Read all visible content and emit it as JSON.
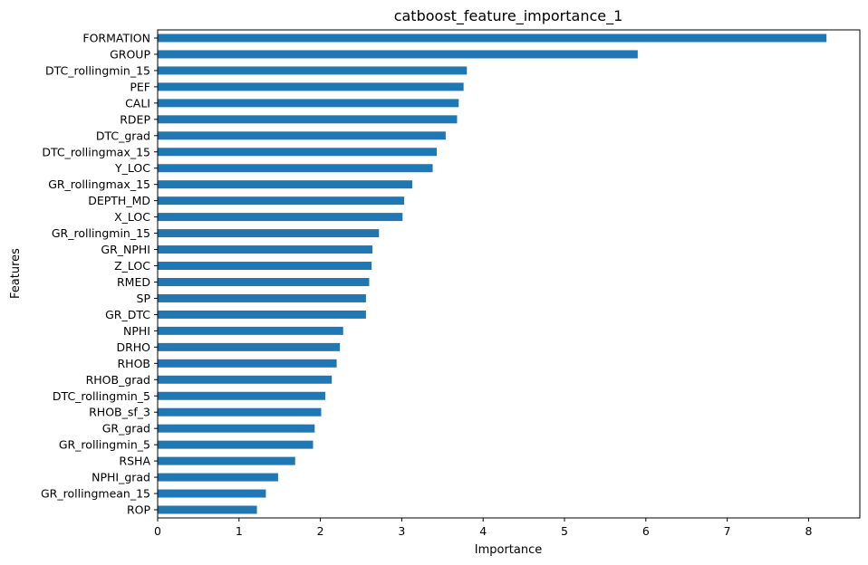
{
  "chart_data": {
    "type": "bar",
    "orientation": "horizontal",
    "title": "catboost_feature_importance_1",
    "xlabel": "Importance",
    "ylabel": "Features",
    "xlim": [
      0,
      8.63
    ],
    "xticks": [
      "0",
      "1",
      "2",
      "3",
      "4",
      "5",
      "6",
      "7",
      "8"
    ],
    "grid": false,
    "bar_color": "#1f77b4",
    "categories": [
      "FORMATION",
      "GROUP",
      "DTC_rollingmin_15",
      "PEF",
      "CALI",
      "RDEP",
      "DTC_grad",
      "DTC_rollingmax_15",
      "Y_LOC",
      "GR_rollingmax_15",
      "DEPTH_MD",
      "X_LOC",
      "GR_rollingmin_15",
      "GR_NPHI",
      "Z_LOC",
      "RMED",
      "SP",
      "GR_DTC",
      "NPHI",
      "DRHO",
      "RHOB",
      "RHOB_grad",
      "DTC_rollingmin_5",
      "RHOB_sf_3",
      "GR_grad",
      "GR_rollingmin_5",
      "RSHA",
      "NPHI_grad",
      "GR_rollingmean_15",
      "ROP"
    ],
    "values": [
      8.22,
      5.9,
      3.8,
      3.76,
      3.7,
      3.68,
      3.54,
      3.43,
      3.38,
      3.13,
      3.03,
      3.01,
      2.72,
      2.64,
      2.63,
      2.6,
      2.56,
      2.56,
      2.28,
      2.24,
      2.2,
      2.14,
      2.06,
      2.01,
      1.93,
      1.91,
      1.69,
      1.48,
      1.33,
      1.22
    ]
  }
}
